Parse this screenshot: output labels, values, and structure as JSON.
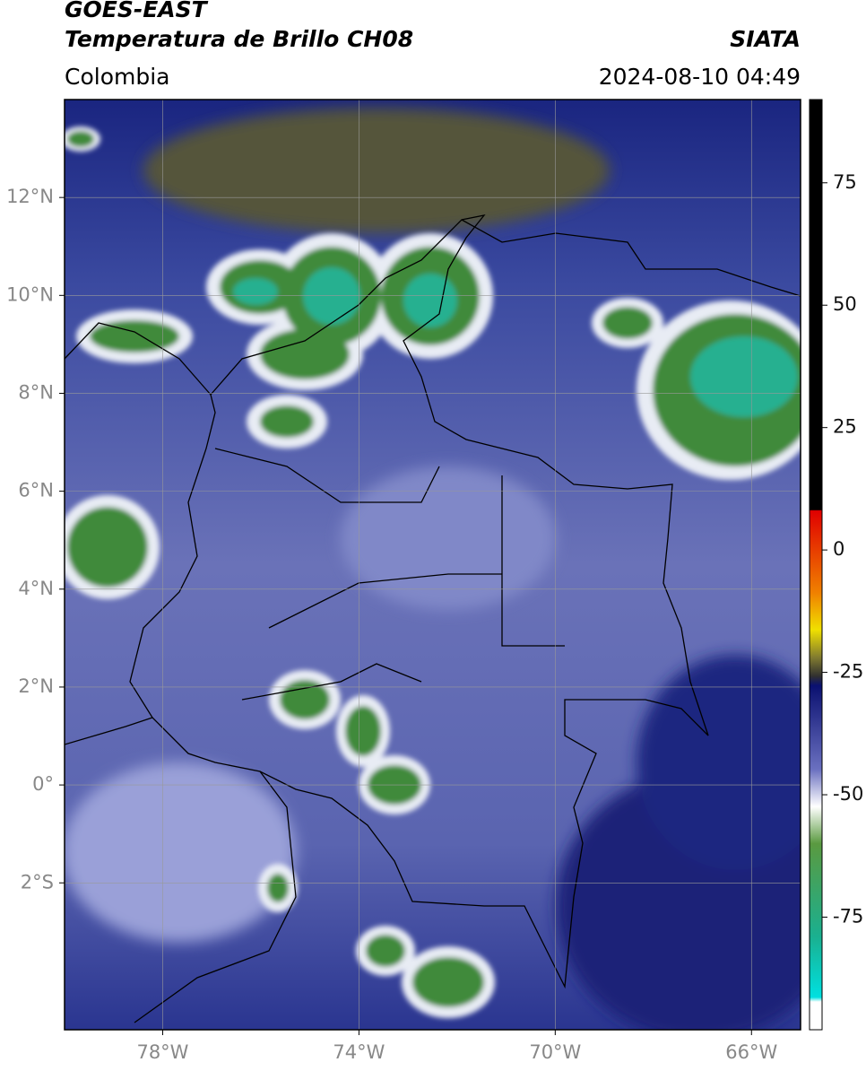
{
  "header": {
    "title": "GOES-EAST",
    "subtitle": "Temperatura de Brillo CH08",
    "source": "SIATA",
    "region": "Colombia",
    "datetime": "2024-08-10 04:49"
  },
  "map": {
    "xlim": [
      -80,
      -65
    ],
    "ylim": [
      -5,
      14
    ],
    "grid": true,
    "xticks": [
      {
        "value": -78,
        "label": "78°W"
      },
      {
        "value": -74,
        "label": "74°W"
      },
      {
        "value": -70,
        "label": "70°W"
      },
      {
        "value": -66,
        "label": "66°W"
      }
    ],
    "yticks": [
      {
        "value": 12,
        "label": "12°N"
      },
      {
        "value": 10,
        "label": "10°N"
      },
      {
        "value": 8,
        "label": "8°N"
      },
      {
        "value": 6,
        "label": "6°N"
      },
      {
        "value": 4,
        "label": "4°N"
      },
      {
        "value": 2,
        "label": "2°N"
      },
      {
        "value": 0,
        "label": "0°"
      },
      {
        "value": -2,
        "label": "2°S"
      }
    ]
  },
  "colorbar": {
    "lim": [
      -98,
      92
    ],
    "ticks": [
      75,
      50,
      25,
      0,
      -25,
      -50,
      -75
    ]
  }
}
